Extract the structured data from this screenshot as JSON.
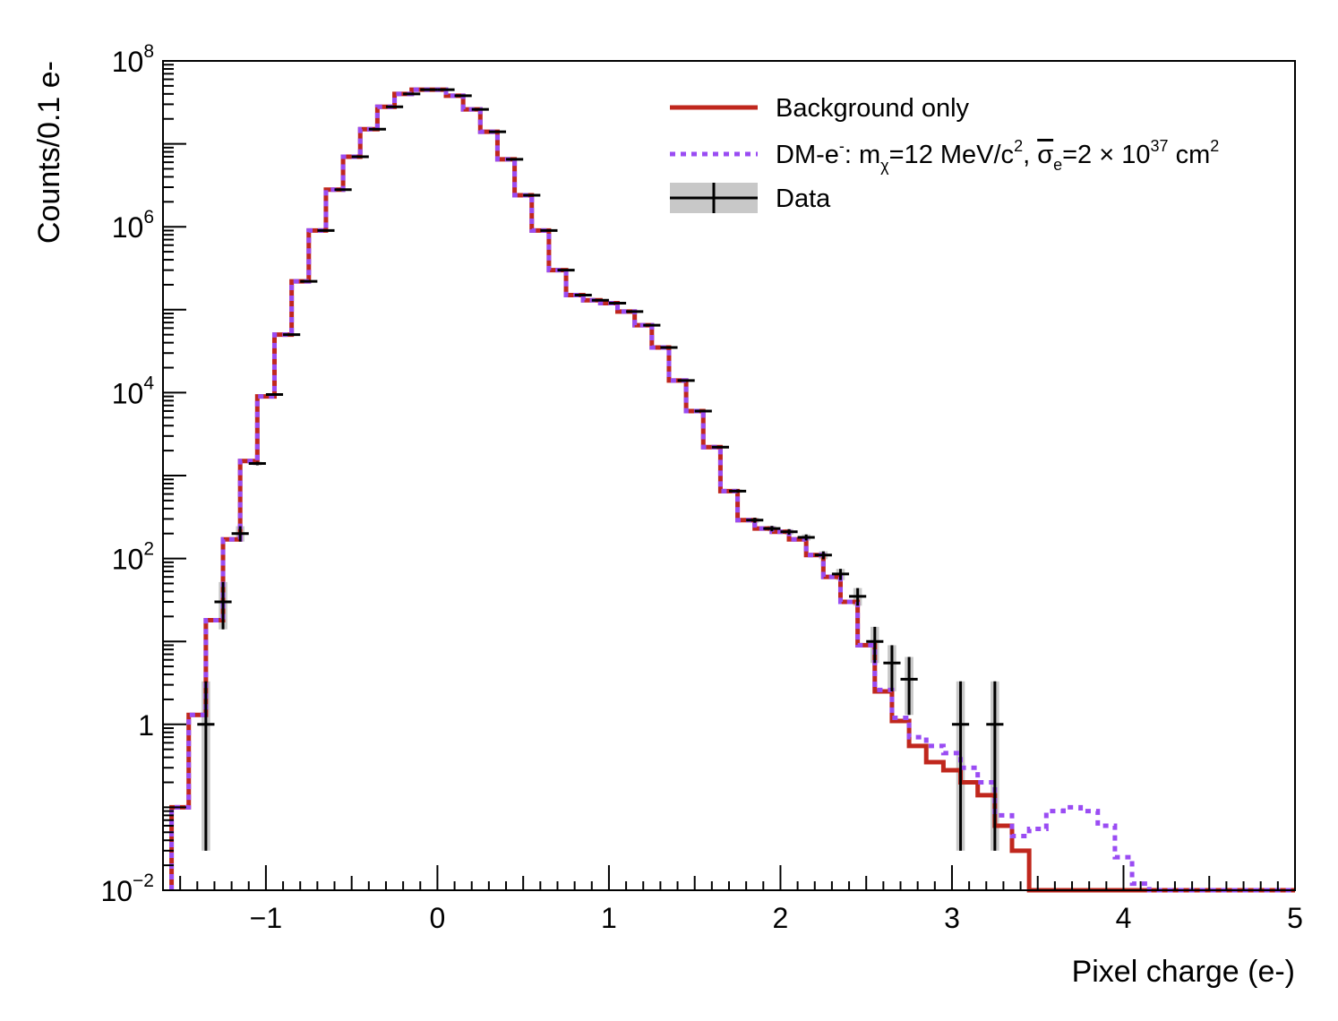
{
  "chart_data": {
    "type": "histogram",
    "xlabel": "Pixel charge (e-)",
    "ylabel": "Counts/0.1 e-",
    "xlim": [
      -1.6,
      5.0
    ],
    "ylim": [
      0.01,
      100000000
    ],
    "yscale": "log",
    "x_ticks": [
      {
        "value": -1,
        "label": "−1"
      },
      {
        "value": 0,
        "label": "0"
      },
      {
        "value": 1,
        "label": "1"
      },
      {
        "value": 2,
        "label": "2"
      },
      {
        "value": 3,
        "label": "3"
      },
      {
        "value": 4,
        "label": "4"
      },
      {
        "value": 5,
        "label": "5"
      }
    ],
    "y_ticks": [
      {
        "value": 0.01,
        "base": "10",
        "exp": "−2"
      },
      {
        "value": 1,
        "base": "1",
        "exp": ""
      },
      {
        "value": 100,
        "base": "10",
        "exp": "2"
      },
      {
        "value": 10000,
        "base": "10",
        "exp": "4"
      },
      {
        "value": 1000000,
        "base": "10",
        "exp": "6"
      },
      {
        "value": 100000000,
        "base": "10",
        "exp": "8"
      }
    ],
    "legend": {
      "position": "top-right",
      "entries": [
        {
          "label": "Background only",
          "style": "solid-red"
        },
        {
          "label_parts": [
            "DM-e",
            "-",
            ": m",
            "χ",
            "=12 MeV/c",
            "2",
            ", ",
            "σ",
            "e",
            "=2 × 10",
            "37",
            " cm",
            "2"
          ],
          "style": "dotted-purple"
        },
        {
          "label": "Data",
          "style": "points-with-errorbars"
        }
      ]
    },
    "colors": {
      "background": "#c0271d",
      "dm": "#9a4cf3",
      "data": "#000000",
      "band": "#c8c8c8"
    },
    "bin_edges_start": -1.55,
    "bin_width": 0.1,
    "series": [
      {
        "name": "Background only",
        "values": [
          0.1,
          1.3,
          18,
          170,
          1500,
          9000,
          50000,
          220000,
          900000,
          2800000,
          7000000,
          15000000,
          28000000,
          40000000,
          45000000,
          45000000,
          38000000,
          26000000,
          14000000,
          6500000,
          2400000,
          900000,
          300000,
          150000,
          130000,
          120000,
          95000,
          65000,
          35000,
          14000,
          6000,
          2200,
          650,
          290,
          230,
          210,
          170,
          110,
          60,
          30,
          9,
          2.5,
          1.1,
          0.55,
          0.35,
          0.28,
          0.2,
          0.14,
          0.06,
          0.03,
          0.01,
          0.01,
          0.01,
          0.01,
          0.01,
          0.01,
          0.01,
          0.01,
          0.01,
          0.01,
          0.01,
          0.01,
          0.01,
          0.01,
          0.01,
          0.01
        ]
      },
      {
        "name": "DM-e",
        "values": [
          0.1,
          1.3,
          18,
          170,
          1500,
          9000,
          50000,
          220000,
          900000,
          2800000,
          7000000,
          15000000,
          28000000,
          40000000,
          45000000,
          45000000,
          38000000,
          26000000,
          14000000,
          6500000,
          2400000,
          900000,
          300000,
          150000,
          130000,
          120000,
          95000,
          65000,
          35000,
          14000,
          6000,
          2200,
          650,
          290,
          230,
          210,
          170,
          110,
          60,
          30,
          9,
          2.6,
          1.2,
          0.7,
          0.55,
          0.45,
          0.3,
          0.2,
          0.08,
          0.045,
          0.055,
          0.09,
          0.1,
          0.09,
          0.06,
          0.025,
          0.012,
          0.01,
          0.01,
          0.01,
          0.01,
          0.01,
          0.01,
          0.01,
          0.01,
          0.01
        ]
      }
    ],
    "data_points": [
      {
        "x": -1.35,
        "y": 1,
        "err_lo": 0.03,
        "err_hi": 3.3
      },
      {
        "x": -1.25,
        "y": 30,
        "err_lo": 14,
        "err_hi": 52
      },
      {
        "x": -1.15,
        "y": 200,
        "err_lo": 160,
        "err_hi": 245
      },
      {
        "x": -1.05,
        "y": 1400,
        "err_lo": 1330,
        "err_hi": 1470
      },
      {
        "x": -0.95,
        "y": 9500,
        "err_lo": 9400,
        "err_hi": 9600
      },
      {
        "x": -0.85,
        "y": 50000,
        "err_lo": 49800,
        "err_hi": 50200
      },
      {
        "x": -0.75,
        "y": 220000,
        "err_lo": 219500,
        "err_hi": 220500
      },
      {
        "x": -0.65,
        "y": 900000,
        "err_lo": 899000,
        "err_hi": 901000
      },
      {
        "x": -0.55,
        "y": 2800000,
        "err_lo": 2798000,
        "err_hi": 2802000
      },
      {
        "x": -0.45,
        "y": 7000000,
        "err_lo": 6997000,
        "err_hi": 7003000
      },
      {
        "x": -0.35,
        "y": 15000000,
        "err_lo": 14996000,
        "err_hi": 15004000
      },
      {
        "x": -0.25,
        "y": 28000000,
        "err_lo": 27995000,
        "err_hi": 28005000
      },
      {
        "x": -0.15,
        "y": 40000000,
        "err_lo": 39994000,
        "err_hi": 40006000
      },
      {
        "x": -0.05,
        "y": 45000000,
        "err_lo": 44993000,
        "err_hi": 45007000
      },
      {
        "x": 0.05,
        "y": 45000000,
        "err_lo": 44993000,
        "err_hi": 45007000
      },
      {
        "x": 0.15,
        "y": 38000000,
        "err_lo": 37994000,
        "err_hi": 38006000
      },
      {
        "x": 0.25,
        "y": 26000000,
        "err_lo": 25995000,
        "err_hi": 26005000
      },
      {
        "x": 0.35,
        "y": 14000000,
        "err_lo": 13996000,
        "err_hi": 14004000
      },
      {
        "x": 0.45,
        "y": 6500000,
        "err_lo": 6497000,
        "err_hi": 6503000
      },
      {
        "x": 0.55,
        "y": 2400000,
        "err_lo": 2398000,
        "err_hi": 2402000
      },
      {
        "x": 0.65,
        "y": 900000,
        "err_lo": 899000,
        "err_hi": 901000
      },
      {
        "x": 0.75,
        "y": 300000,
        "err_lo": 299400,
        "err_hi": 300600
      },
      {
        "x": 0.85,
        "y": 150000,
        "err_lo": 149600,
        "err_hi": 150400
      },
      {
        "x": 0.95,
        "y": 130000,
        "err_lo": 129600,
        "err_hi": 130400
      },
      {
        "x": 1.05,
        "y": 120000,
        "err_lo": 119600,
        "err_hi": 120400
      },
      {
        "x": 1.15,
        "y": 95000,
        "err_lo": 94700,
        "err_hi": 95300
      },
      {
        "x": 1.25,
        "y": 65000,
        "err_lo": 64700,
        "err_hi": 65300
      },
      {
        "x": 1.35,
        "y": 35000,
        "err_lo": 34800,
        "err_hi": 35200
      },
      {
        "x": 1.45,
        "y": 14000,
        "err_lo": 13880,
        "err_hi": 14120
      },
      {
        "x": 1.55,
        "y": 6000,
        "err_lo": 5920,
        "err_hi": 6080
      },
      {
        "x": 1.65,
        "y": 2200,
        "err_lo": 2150,
        "err_hi": 2250
      },
      {
        "x": 1.75,
        "y": 650,
        "err_lo": 620,
        "err_hi": 680
      },
      {
        "x": 1.85,
        "y": 290,
        "err_lo": 270,
        "err_hi": 310
      },
      {
        "x": 1.95,
        "y": 230,
        "err_lo": 213,
        "err_hi": 247
      },
      {
        "x": 2.05,
        "y": 210,
        "err_lo": 194,
        "err_hi": 226
      },
      {
        "x": 2.15,
        "y": 180,
        "err_lo": 165,
        "err_hi": 195
      },
      {
        "x": 2.25,
        "y": 110,
        "err_lo": 98,
        "err_hi": 122
      },
      {
        "x": 2.35,
        "y": 65,
        "err_lo": 55,
        "err_hi": 75
      },
      {
        "x": 2.45,
        "y": 35,
        "err_lo": 27,
        "err_hi": 44
      },
      {
        "x": 2.55,
        "y": 10,
        "err_lo": 5.5,
        "err_hi": 15
      },
      {
        "x": 2.65,
        "y": 5.5,
        "err_lo": 2.5,
        "err_hi": 9
      },
      {
        "x": 2.75,
        "y": 3.5,
        "err_lo": 1.3,
        "err_hi": 6.5
      },
      {
        "x": 3.05,
        "y": 1,
        "err_lo": 0.03,
        "err_hi": 3.3
      },
      {
        "x": 3.25,
        "y": 1,
        "err_lo": 0.03,
        "err_hi": 3.3
      }
    ]
  }
}
